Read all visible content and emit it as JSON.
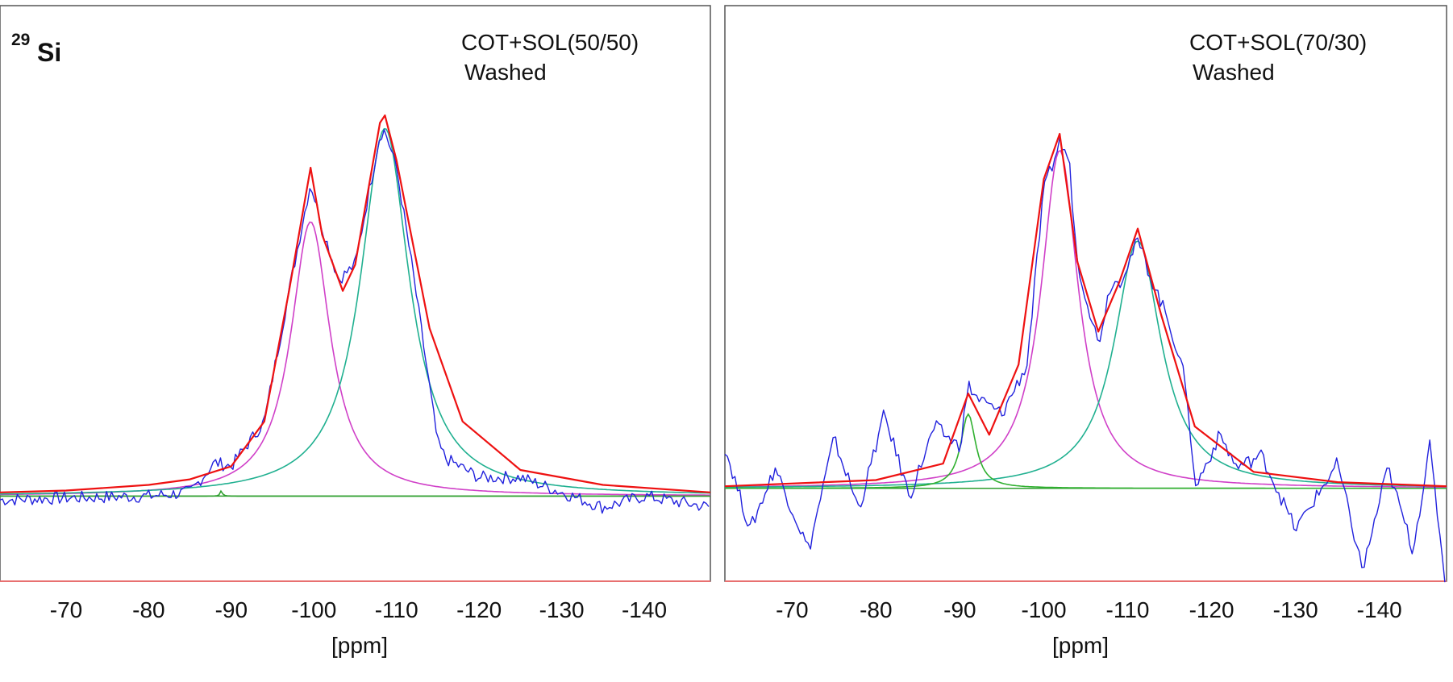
{
  "figure": {
    "nucleus_mass": "29",
    "nucleus_symbol": "Si"
  },
  "chart_data": [
    {
      "type": "line",
      "title": "COT+SOL(50/50)",
      "subtitle": "Washed",
      "xlabel": "[ppm]",
      "ylabel": "",
      "x_ticks": [
        -70,
        -80,
        -90,
        -100,
        -110,
        -120,
        -130,
        -140
      ],
      "x_tick_labels": [
        "-70",
        "-80",
        "-90",
        "-100",
        "-110",
        "-120",
        "-130",
        "-140"
      ],
      "xlim": [
        -62,
        -148
      ],
      "ylim": [
        -0.2,
        1.07
      ],
      "x_reversed": true,
      "grid": false,
      "legend": "none",
      "components": [
        {
          "color": "#d040c8",
          "center": -99.6,
          "height": 0.735,
          "hwhm": 2.9
        },
        {
          "color": "#20b090",
          "center": -108.6,
          "height": 0.985,
          "hwhm": 3.6
        },
        {
          "color": "#30a030",
          "center": -88.8,
          "height": 0.015,
          "hwhm": 0.15
        }
      ],
      "series": [
        {
          "role": "fit-envelope",
          "color": "#ee1111",
          "x": [
            -62,
            -70,
            -80,
            -85,
            -90,
            -94,
            -97,
            -99.6,
            -101,
            -103.5,
            -105,
            -108,
            -108.6,
            -110,
            -114,
            -118,
            -125,
            -135,
            -148
          ],
          "y": [
            0.01,
            0.015,
            0.03,
            0.045,
            0.08,
            0.2,
            0.55,
            0.88,
            0.7,
            0.55,
            0.62,
            1.0,
            1.02,
            0.9,
            0.45,
            0.2,
            0.07,
            0.03,
            0.01
          ]
        },
        {
          "role": "experimental",
          "color": "#2222dd",
          "x": [
            -62,
            -70,
            -80,
            -85,
            -88,
            -90,
            -94,
            -97,
            -99.6,
            -101,
            -103,
            -105,
            -108,
            -108.6,
            -110,
            -112,
            -115,
            -116,
            -120,
            -125,
            -130,
            -135,
            -140,
            -148
          ],
          "y": [
            -0.01,
            -0.005,
            0.0,
            0.01,
            0.09,
            0.08,
            0.2,
            0.55,
            0.84,
            0.72,
            0.58,
            0.62,
            0.97,
            0.98,
            0.88,
            0.6,
            0.14,
            0.1,
            0.05,
            0.05,
            0.01,
            -0.03,
            0.0,
            -0.03
          ]
        }
      ]
    },
    {
      "type": "line",
      "title": "COT+SOL(70/30)",
      "subtitle": "Washed",
      "xlabel": "[ppm]",
      "ylabel": "",
      "x_ticks": [
        -70,
        -80,
        -90,
        -100,
        -110,
        -120,
        -130,
        -140
      ],
      "x_tick_labels": [
        "-70",
        "-80",
        "-90",
        "-100",
        "-110",
        "-120",
        "-130",
        "-140"
      ],
      "xlim": [
        -62,
        -148
      ],
      "ylim": [
        -0.2,
        0.95
      ],
      "x_reversed": true,
      "grid": false,
      "legend": "none",
      "components": [
        {
          "color": "#d040c8",
          "center": -101.9,
          "height": 0.82,
          "hwhm": 2.7
        },
        {
          "color": "#20b090",
          "center": -111.2,
          "height": 0.6,
          "hwhm": 3.4
        },
        {
          "color": "#30b030",
          "center": -91.0,
          "height": 0.18,
          "hwhm": 1.1
        }
      ],
      "series": [
        {
          "role": "fit-envelope",
          "color": "#ee1111",
          "x": [
            -62,
            -80,
            -88,
            -91,
            -93.5,
            -97,
            -100,
            -101.9,
            -104,
            -106.5,
            -109,
            -111.2,
            -114,
            -118,
            -125,
            -135,
            -148
          ],
          "y": [
            0.005,
            0.02,
            0.06,
            0.23,
            0.13,
            0.3,
            0.75,
            0.86,
            0.55,
            0.38,
            0.5,
            0.63,
            0.42,
            0.15,
            0.04,
            0.015,
            0.005
          ]
        },
        {
          "role": "experimental",
          "color": "#2222dd",
          "x": [
            -62,
            -65,
            -68,
            -72,
            -75,
            -78,
            -81,
            -84,
            -87,
            -90,
            -91,
            -92,
            -95,
            -98,
            -100,
            -101.9,
            -103,
            -104,
            -106.5,
            -108,
            -109,
            -111.2,
            -113,
            -115,
            -117,
            -118,
            -121,
            -123,
            -126,
            -130,
            -135,
            -138,
            -141,
            -144,
            -146,
            -148
          ],
          "y": [
            0.1,
            -0.1,
            0.05,
            -0.15,
            0.12,
            -0.05,
            0.18,
            -0.02,
            0.15,
            0.1,
            0.25,
            0.22,
            0.18,
            0.3,
            0.72,
            0.84,
            0.8,
            0.55,
            0.35,
            0.5,
            0.5,
            0.6,
            0.5,
            0.4,
            0.25,
            0.0,
            0.13,
            0.05,
            0.08,
            -0.1,
            0.06,
            -0.2,
            0.05,
            -0.15,
            0.1,
            -0.25
          ]
        }
      ]
    }
  ]
}
